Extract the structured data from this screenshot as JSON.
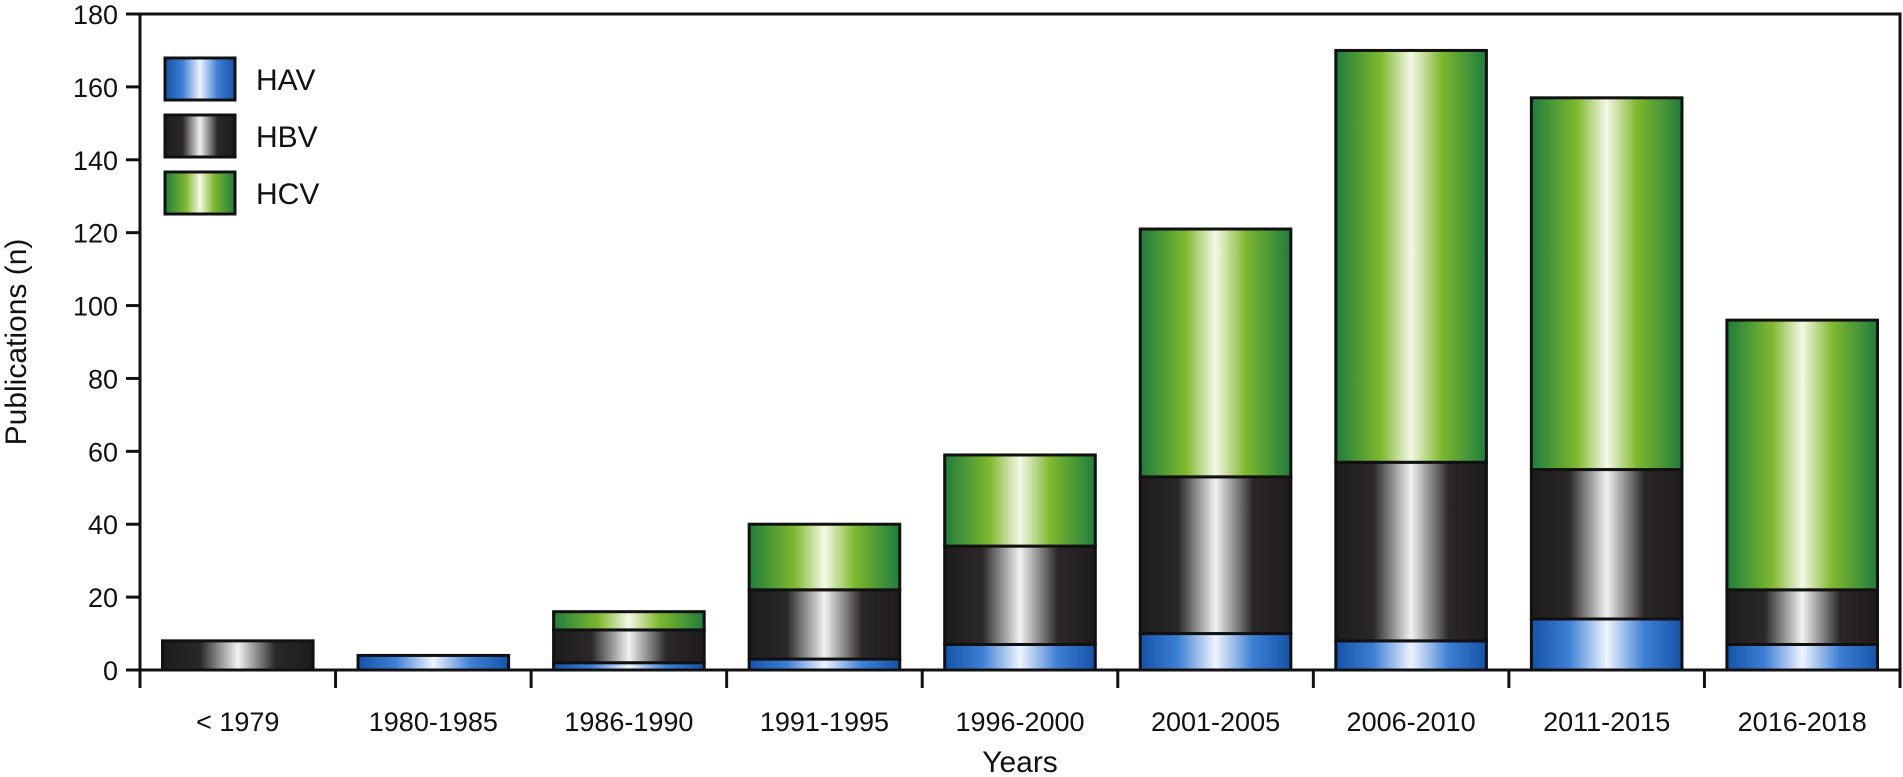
{
  "chart_data": {
    "type": "bar",
    "stacked": true,
    "categories": [
      "< 1979",
      "1980-1985",
      "1986-1990",
      "1991-1995",
      "1996-2000",
      "2001-2005",
      "2006-2010",
      "2011-2015",
      "2016-2018"
    ],
    "series": [
      {
        "name": "HAV",
        "values": [
          0,
          4,
          2,
          3,
          7,
          10,
          8,
          14,
          7
        ],
        "color": "#1a5fb4"
      },
      {
        "name": "HBV",
        "values": [
          8,
          0,
          9,
          19,
          27,
          43,
          49,
          41,
          15
        ],
        "color": "#231f20"
      },
      {
        "name": "HCV",
        "values": [
          0,
          0,
          5,
          18,
          25,
          68,
          113,
          102,
          74
        ],
        "color": "#2e8b3e"
      }
    ],
    "title": "",
    "xlabel": "Years",
    "ylabel": "Publications (n)",
    "ylim": [
      0,
      180
    ],
    "yticks": [
      0,
      20,
      40,
      60,
      80,
      100,
      120,
      140,
      160,
      180
    ],
    "grid": false,
    "legend": "top-left"
  }
}
